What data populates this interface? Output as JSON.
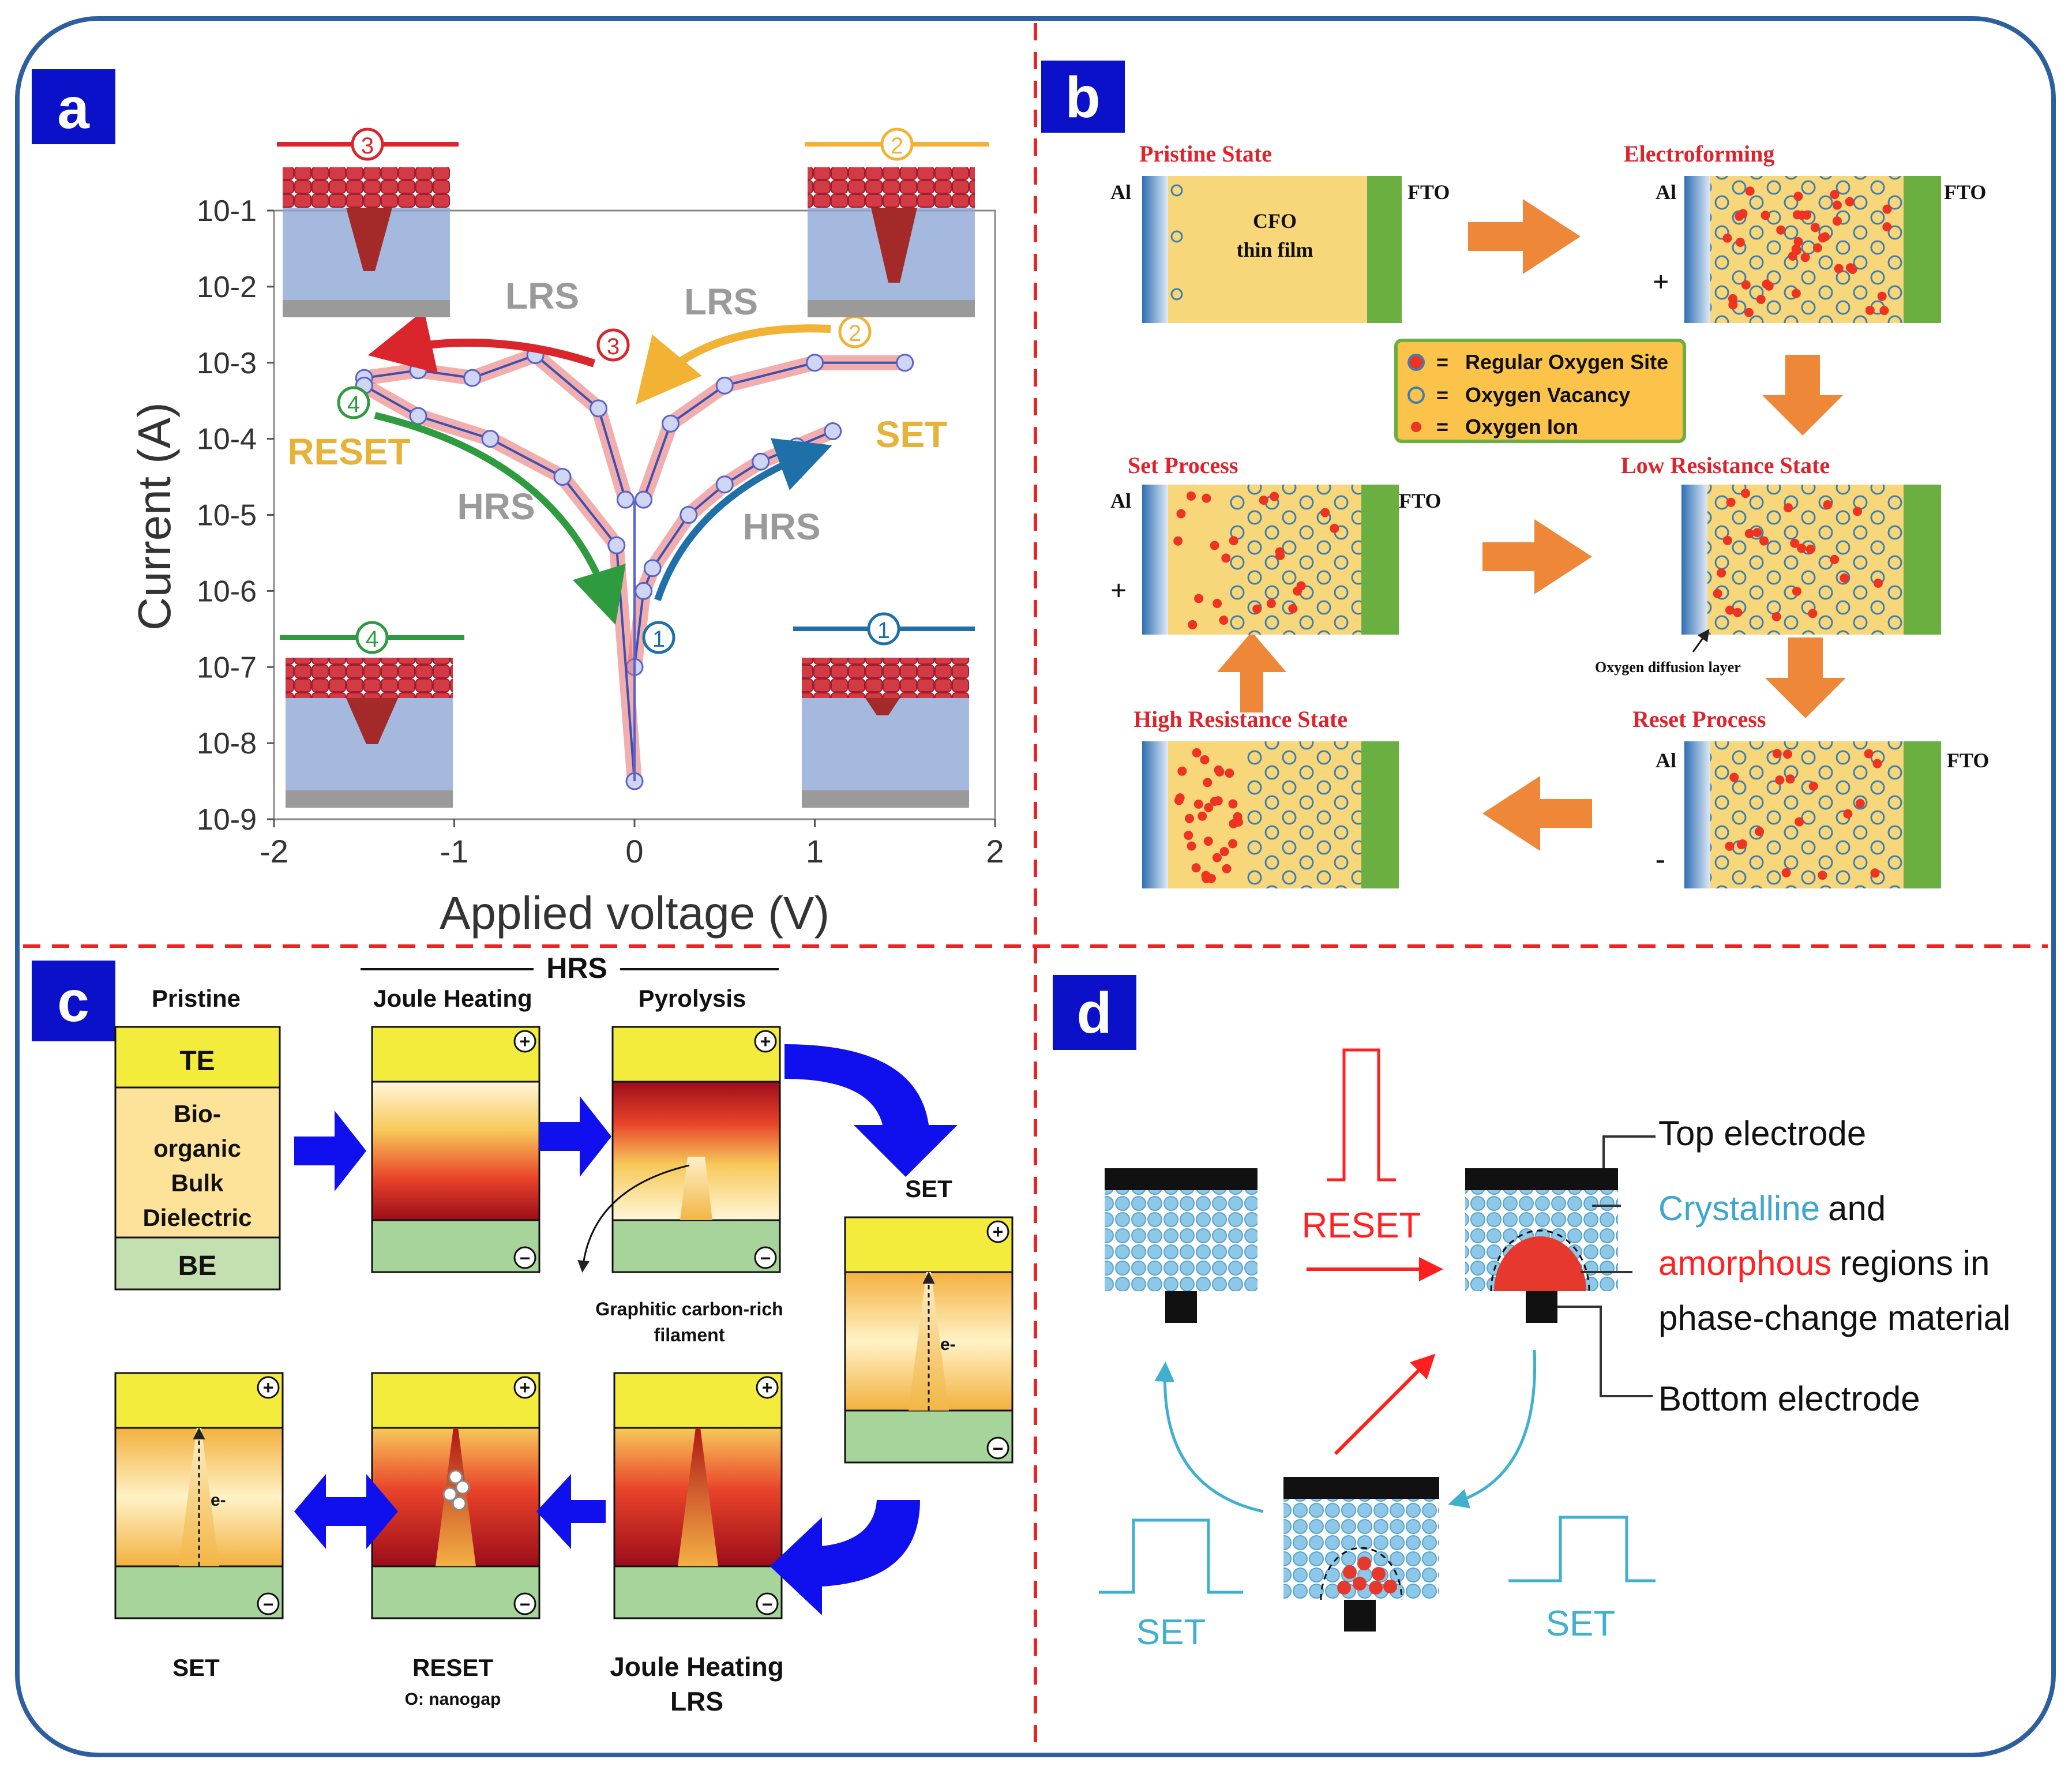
{
  "panels": {
    "a": "a",
    "b": "b",
    "c": "c",
    "d": "d"
  },
  "panel_a": {
    "ylabel": "Current (A)",
    "xlabel": "Applied voltage (V)",
    "yticks": [
      "10-1",
      "10-2",
      "10-3",
      "10-4",
      "10-5",
      "10-6",
      "10-7",
      "10-8",
      "10-9"
    ],
    "xticks": [
      "-2",
      "-1",
      "0",
      "1",
      "2"
    ],
    "labels": {
      "lrs_left": "LRS",
      "lrs_right": "LRS",
      "hrs_left": "HRS",
      "hrs_right": "HRS",
      "reset": "RESET",
      "set": "SET"
    },
    "steps": [
      "1",
      "2",
      "3",
      "4"
    ]
  },
  "chart_data": {
    "type": "line",
    "title": "",
    "xlabel": "Applied voltage (V)",
    "ylabel": "Current (A)",
    "xlim": [
      -2,
      2
    ],
    "ylim_log10": [
      -9,
      -1
    ],
    "series": [
      {
        "name": "SET sweep HRS (1)",
        "x": [
          0.0,
          0.05,
          0.1,
          0.3,
          0.5,
          0.7,
          0.9,
          1.1
        ],
        "y_log10": [
          -7.0,
          -6.0,
          -5.7,
          -5.0,
          -4.6,
          -4.3,
          -4.1,
          -3.9
        ]
      },
      {
        "name": "LRS (2)",
        "x": [
          1.5,
          1.0,
          0.5,
          0.2,
          0.05
        ],
        "y_log10": [
          -3.0,
          -3.0,
          -3.3,
          -3.8,
          -4.8
        ]
      },
      {
        "name": "LRS (3)",
        "x": [
          -0.05,
          -0.2,
          -0.55,
          -0.9,
          -1.2,
          -1.5
        ],
        "y_log10": [
          -4.8,
          -3.6,
          -2.9,
          -3.2,
          -3.1,
          -3.2
        ]
      },
      {
        "name": "RESET HRS (4)",
        "x": [
          -1.5,
          -1.2,
          -0.8,
          -0.4,
          -0.1,
          0.0
        ],
        "y_log10": [
          -3.3,
          -3.7,
          -4.0,
          -4.5,
          -5.4,
          -8.5
        ]
      }
    ]
  },
  "panel_b": {
    "states": {
      "pristine": "Pristine State",
      "electroforming": "Electroforming",
      "set": "Set Process",
      "lrs": "Low Resistance State",
      "hrs": "High Resistance State",
      "reset": "Reset Process"
    },
    "al": "Al",
    "fto": "FTO",
    "plus": "+",
    "minus": "-",
    "film_line1": "CFO",
    "film_line2": "thin film",
    "legend": {
      "regular": "Regular Oxygen Site",
      "vacancy": "Oxygen Vacancy",
      "ion": "Oxygen Ion",
      "eq": "="
    },
    "diffusion": "Oxygen diffusion layer"
  },
  "panel_c": {
    "hrs": "HRS",
    "pristine": "Pristine",
    "joule": "Joule Heating",
    "pyrolysis": "Pyrolysis",
    "te": "TE",
    "dielectric": [
      "Bio-",
      "organic",
      "Bulk",
      "Dielectric"
    ],
    "be": "BE",
    "filament": [
      "Graphitic carbon-rich",
      "filament"
    ],
    "set_right": "SET",
    "set_bottom": "SET",
    "reset": "RESET",
    "nanogap": "O: nanogap",
    "joule_lrs_1": "Joule Heating",
    "joule_lrs_2": "LRS",
    "electron": "e-",
    "plus": "+",
    "minus": "−"
  },
  "panel_d": {
    "reset": "RESET",
    "set_left": "SET",
    "set_right": "SET",
    "top_electrode": "Top electrode",
    "crystalline": "Crystalline",
    "and": "and",
    "amorphous": "amorphous",
    "regions_in": "regions in",
    "pcm": "phase-change material",
    "bottom_electrode": "Bottom electrode"
  }
}
